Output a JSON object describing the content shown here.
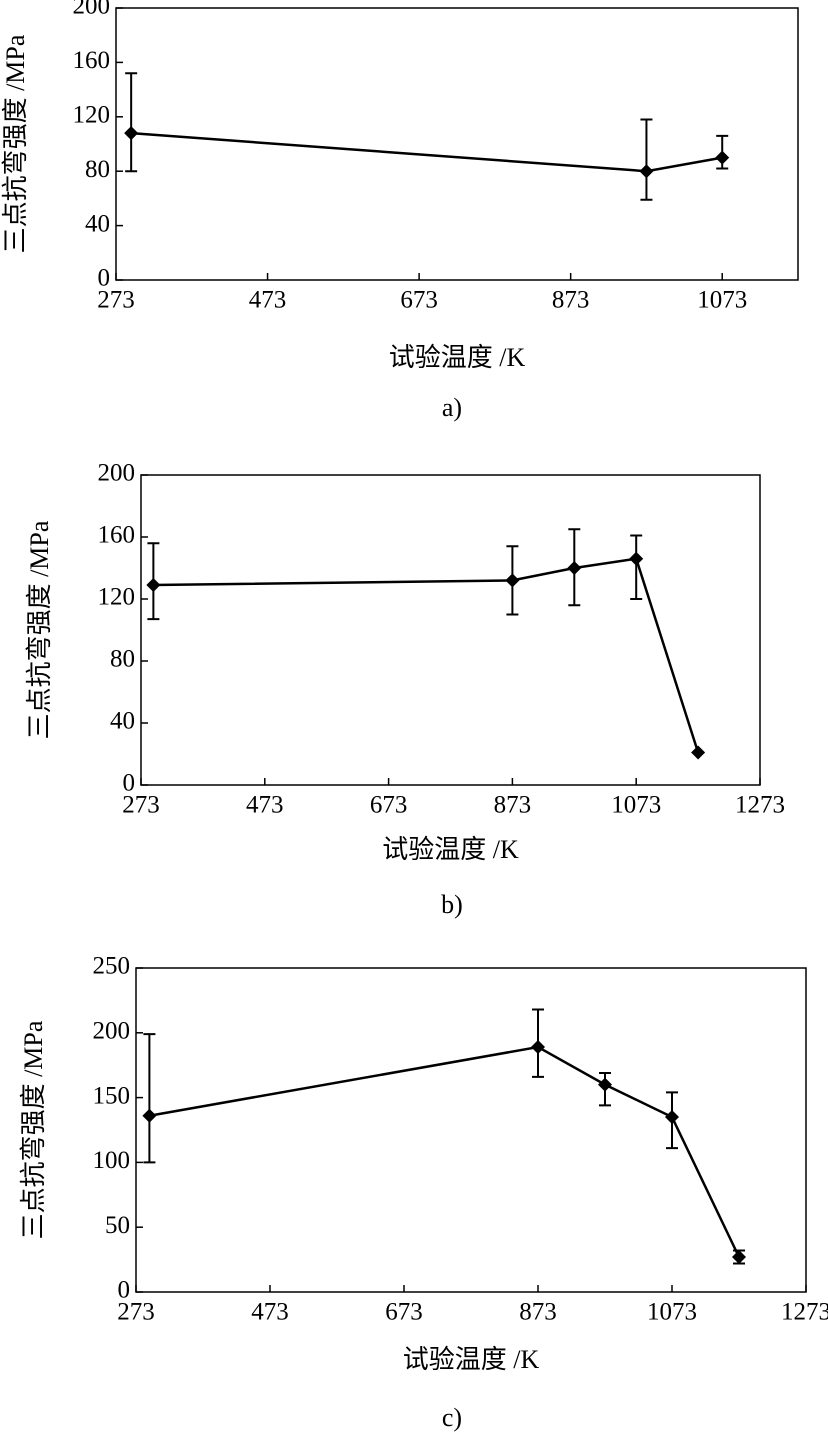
{
  "chart_data": [
    {
      "type": "line",
      "caption": "a)",
      "x_label": "试验温度 /K",
      "y_label": "三点抗弯强度 /MPa",
      "x": [
        293,
        973,
        1073
      ],
      "series": [
        {
          "color": "#000000",
          "values": [
            108,
            80,
            90
          ],
          "err_plus": [
            44,
            38,
            16
          ],
          "err_minus": [
            28,
            21,
            8
          ]
        }
      ],
      "xlim": [
        273,
        1173
      ],
      "ylim": [
        0,
        200
      ],
      "xticks": [
        273,
        473,
        673,
        873,
        1073
      ],
      "yticks": [
        0,
        40,
        80,
        120,
        160,
        200
      ]
    },
    {
      "type": "line",
      "caption": "b)",
      "x_label": "试验温度 /K",
      "y_label": "三点抗弯强度 /MPa",
      "x": [
        293,
        873,
        973,
        1073,
        1173
      ],
      "series": [
        {
          "color": "#000000",
          "values": [
            129,
            132,
            140,
            146,
            21
          ],
          "err_plus": [
            27,
            22,
            25,
            15,
            0
          ],
          "err_minus": [
            22,
            22,
            24,
            26,
            0
          ]
        }
      ],
      "xlim": [
        273,
        1273
      ],
      "ylim": [
        0,
        200
      ],
      "xticks": [
        273,
        473,
        673,
        873,
        1073,
        1273
      ],
      "yticks": [
        0,
        40,
        80,
        120,
        160,
        200
      ]
    },
    {
      "type": "line",
      "caption": "c)",
      "x_label": "试验温度 /K",
      "y_label": "三点抗弯强度 /MPa",
      "x": [
        293,
        873,
        973,
        1073,
        1173
      ],
      "series": [
        {
          "color": "#000000",
          "values": [
            136,
            189,
            160,
            135,
            27
          ],
          "err_plus": [
            63,
            29,
            9,
            19,
            5
          ],
          "err_minus": [
            36,
            23,
            16,
            24,
            5
          ]
        }
      ],
      "xlim": [
        273,
        1273
      ],
      "ylim": [
        0,
        250
      ],
      "xticks": [
        273,
        473,
        673,
        873,
        1073,
        1273
      ],
      "yticks": [
        0,
        50,
        100,
        150,
        200,
        250
      ]
    }
  ]
}
